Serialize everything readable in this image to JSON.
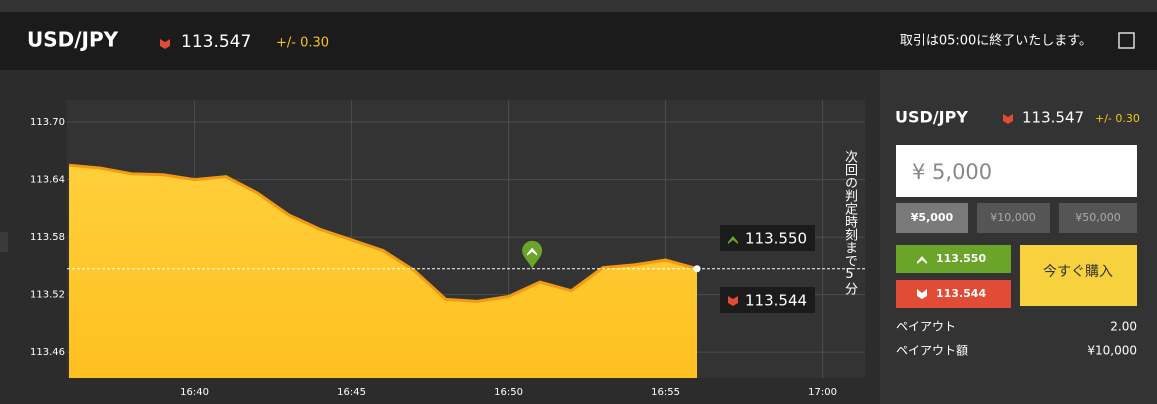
{
  "header": {
    "symbol": "USD/JPY",
    "price": "113.547",
    "range": "+/- 0.30",
    "notice": "取引は05:00に終了いたします。"
  },
  "chart_data": {
    "type": "area",
    "color": "#ffc630",
    "line_color": "#f39a12",
    "x": [
      "16:36",
      "16:37",
      "16:38",
      "16:39",
      "16:40",
      "16:41",
      "16:42",
      "16:43",
      "16:44",
      "16:45",
      "16:46",
      "16:47",
      "16:48",
      "16:49",
      "16:50",
      "16:51",
      "16:52",
      "16:53",
      "16:54",
      "16:55",
      "16:56"
    ],
    "values": [
      113.655,
      113.652,
      113.646,
      113.645,
      113.64,
      113.643,
      113.626,
      113.603,
      113.588,
      113.577,
      113.566,
      113.545,
      113.515,
      113.513,
      113.518,
      113.533,
      113.524,
      113.548,
      113.551,
      113.556,
      113.547
    ],
    "xlim": [
      "16:36",
      "17:01"
    ],
    "xticks": [
      "16:40",
      "16:45",
      "16:50",
      "16:55",
      "17:00"
    ],
    "ylim": [
      113.433,
      113.723
    ],
    "yticks": [
      {
        "value": 113.7,
        "label": "113.70"
      },
      113.64,
      113.58,
      113.52,
      113.46
    ],
    "grid": true,
    "current_value": 113.547,
    "entry": {
      "x": "16:50:45",
      "value": 113.547
    },
    "high_label": "113.550",
    "low_label": "113.544",
    "countdown": "次回の判定時刻まで5分"
  },
  "panel": {
    "symbol": "USD/JPY",
    "price": "113.547",
    "range": "+/- 0.30",
    "amount": "¥ 5,000",
    "presets": [
      "¥5,000",
      "¥10,000",
      "¥50,000"
    ],
    "high": "113.550",
    "low": "113.544",
    "buy": "今すぐ購入",
    "payout_label": "ペイアウト",
    "payout": "2.00",
    "payout_amount_label": "ペイアウト額",
    "payout_amount": "¥10,000"
  }
}
